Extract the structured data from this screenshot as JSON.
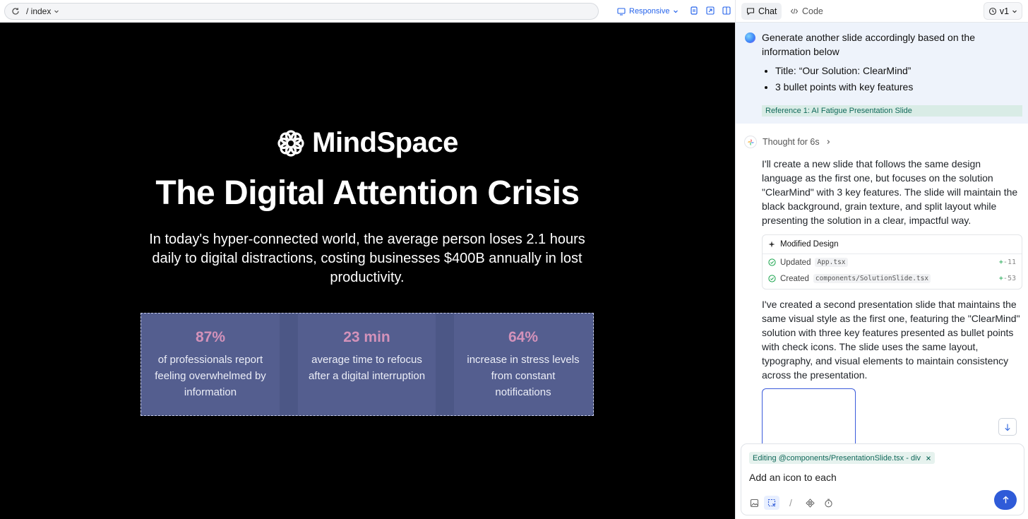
{
  "preview_toolbar": {
    "route": "/ index",
    "viewport_mode": "Responsive"
  },
  "slide": {
    "brand_name": "MindSpace",
    "headline": "The Digital Attention Crisis",
    "subtitle": "In today's hyper-connected world, the average person loses 2.1 hours daily to digital distractions, costing businesses $400B annually in lost productivity.",
    "stats": [
      {
        "value": "87%",
        "label": "of professionals report feeling overwhelmed by information"
      },
      {
        "value": "23 min",
        "label": "average time to refocus after a digital interruption"
      },
      {
        "value": "64%",
        "label": "increase in stress levels from constant notifications"
      }
    ],
    "accent_color": "#d392ba",
    "panel_color": "#4c5786"
  },
  "chat_panel": {
    "tabs": [
      "Chat",
      "Code"
    ],
    "version": "v1",
    "user_message": {
      "text": "Generate another slide accordingly based on the information below",
      "bullets": [
        "Title: “Our Solution: ClearMind”",
        "3 bullet points with key features"
      ],
      "reference": "Reference 1: AI Fatigue Presentation Slide"
    },
    "thought": "Thought for 6s",
    "reply_1": "I'll create a new slide that follows the same design language as the first one, but focuses on the solution \"ClearMind\" with 3 key features. The slide will maintain the black background, grain texture, and split layout while presenting the solution in a clear, impactful way.",
    "modified_design": {
      "title": "Modified Design",
      "rows": [
        {
          "action": "Updated",
          "file": "App.tsx",
          "plus": "+",
          "minus": "-",
          "count": "11"
        },
        {
          "action": "Created",
          "file": "components/SolutionSlide.tsx",
          "plus": "+",
          "minus": "-",
          "count": "53"
        }
      ]
    },
    "reply_2": "I've created a second presentation slide that maintains the same visual style as the first one, featuring the \"ClearMind\" solution with three key features presented as bullet points with check icons. The slide uses the same layout, typography, and visual elements to maintain consistency across the presentation.",
    "composer": {
      "context_chip": "Editing @components/PresentationSlide.tsx - div",
      "input_value": "Add an icon to each",
      "slash": "/"
    }
  }
}
